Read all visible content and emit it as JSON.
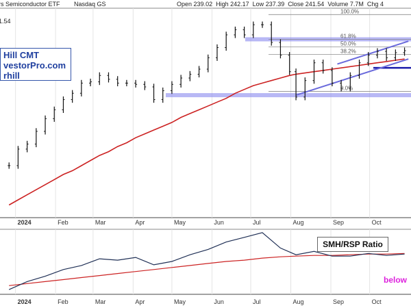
{
  "header": {
    "symbol_name": "rs Semiconductor ETF",
    "exchange": "Nasdaq GS",
    "open_label": "Open",
    "open": "239.02",
    "high_label": "High",
    "high": "242.17",
    "low_label": "Low",
    "low": "237.39",
    "close_label": "Close",
    "close": "241.54",
    "volume_label": "Volume",
    "volume": "7.7M",
    "change_label": "Chg",
    "change_partial": "4",
    "last_value": "1.54"
  },
  "annotation_box": {
    "line1": "Hill CMT",
    "line2": "vestorPro.com",
    "line3": "rhill"
  },
  "colors": {
    "price_bars": "#111111",
    "moving_average": "#cc2222",
    "support_zone": "#8888ee",
    "trendline": "#6a6adc",
    "support_line": "#1a1aaa",
    "fib_lines": "#777777",
    "ratio_line": "#1f2f55",
    "ratio_ma": "#cc2222",
    "below_label": "#dd22dd"
  },
  "chart_data": [
    {
      "type": "line",
      "subtype": "ohlc",
      "dates": [
        "2023-12-27",
        "2024-01-03",
        "2024-01-10",
        "2024-01-17",
        "2024-01-24",
        "2024-01-31",
        "2024-02-07",
        "2024-02-14",
        "2024-02-21",
        "2024-02-28",
        "2024-03-06",
        "2024-03-13",
        "2024-03-20",
        "2024-03-27",
        "2024-04-03",
        "2024-04-10",
        "2024-04-17",
        "2024-04-24",
        "2024-05-01",
        "2024-05-08",
        "2024-05-15",
        "2024-05-22",
        "2024-05-29",
        "2024-06-05",
        "2024-06-12",
        "2024-06-19",
        "2024-06-26",
        "2024-07-03",
        "2024-07-10",
        "2024-07-17",
        "2024-07-24",
        "2024-07-31",
        "2024-08-05",
        "2024-08-12",
        "2024-08-19",
        "2024-08-26",
        "2024-09-02",
        "2024-09-09",
        "2024-09-16",
        "2024-09-23",
        "2024-09-30",
        "2024-10-07",
        "2024-10-14",
        "2024-10-21",
        "2024-10-28"
      ],
      "close": [
        151,
        164,
        168,
        178,
        188,
        195,
        203,
        208,
        216,
        217,
        222,
        219,
        216,
        216,
        215,
        213,
        203,
        210,
        215,
        220,
        223,
        227,
        236,
        244,
        254,
        258,
        254,
        262,
        262,
        248,
        238,
        225,
        205,
        218,
        232,
        226,
        216,
        212,
        222,
        232,
        238,
        241,
        236,
        240,
        241.54
      ],
      "moving_average": [
        120,
        124,
        128,
        132,
        136,
        140,
        144,
        147,
        151,
        155,
        159,
        162,
        166,
        169,
        173,
        176,
        179,
        182,
        185,
        189,
        192,
        195,
        198,
        201,
        204,
        208,
        211,
        214,
        216,
        218,
        220,
        222,
        223,
        224,
        225,
        226,
        227,
        228,
        229,
        230,
        231,
        232,
        233,
        234,
        235
      ],
      "horizontal_lines": [
        {
          "value": 206.5
        },
        {
          "value": 250.5
        },
        {
          "value": 228.0
        }
      ],
      "fib_levels": [
        {
          "label": "100.0%",
          "value": 270
        },
        {
          "label": "61.8%",
          "value": 250.5
        },
        {
          "label": "50.0%",
          "value": 244.5
        },
        {
          "label": "38.2%",
          "value": 238.5
        },
        {
          "label": "0.0%",
          "value": 209.5
        }
      ],
      "trendlines": [
        {
          "from": [
            "2024-08-05",
            206.5
          ],
          "to": [
            "2024-10-31",
            235
          ]
        },
        {
          "from": [
            "2024-09-06",
            231
          ],
          "to": [
            "2024-10-31",
            249
          ]
        }
      ],
      "x_tick_labels": [
        "2024",
        "Feb",
        "Mar",
        "Apr",
        "May",
        "Jun",
        "Jul",
        "Aug",
        "Sep",
        "Oct"
      ],
      "ylim": [
        110,
        275
      ]
    },
    {
      "type": "line",
      "title": "SMH/RSP Ratio",
      "dates": [
        "2023-12-27",
        "2024-01-10",
        "2024-01-24",
        "2024-02-07",
        "2024-02-21",
        "2024-03-06",
        "2024-03-20",
        "2024-04-03",
        "2024-04-17",
        "2024-05-01",
        "2024-05-15",
        "2024-05-29",
        "2024-06-12",
        "2024-06-26",
        "2024-07-10",
        "2024-07-24",
        "2024-08-05",
        "2024-08-19",
        "2024-09-02",
        "2024-09-16",
        "2024-09-30",
        "2024-10-14",
        "2024-10-28"
      ],
      "ratio": [
        1.22,
        1.34,
        1.42,
        1.52,
        1.58,
        1.68,
        1.66,
        1.7,
        1.59,
        1.64,
        1.74,
        1.82,
        1.93,
        2.0,
        2.07,
        1.84,
        1.74,
        1.79,
        1.72,
        1.72,
        1.76,
        1.73,
        1.75
      ],
      "moving_average": [
        1.28,
        1.31,
        1.34,
        1.37,
        1.4,
        1.43,
        1.46,
        1.49,
        1.52,
        1.55,
        1.58,
        1.61,
        1.64,
        1.66,
        1.69,
        1.71,
        1.72,
        1.73,
        1.73,
        1.74,
        1.75,
        1.75,
        1.76
      ],
      "annotation": "below",
      "x_tick_labels": [
        "2024",
        "Feb",
        "Mar",
        "Apr",
        "May",
        "Jun",
        "Jul",
        "Aug",
        "Sep",
        "Oct"
      ],
      "ylim": [
        1.15,
        2.12
      ]
    }
  ]
}
